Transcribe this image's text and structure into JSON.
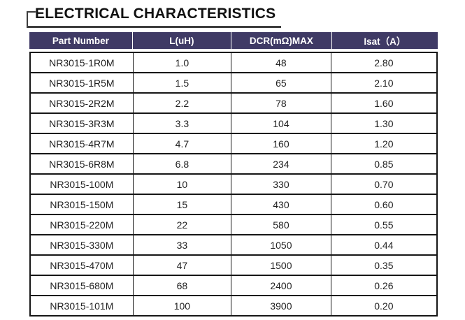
{
  "page": {
    "section_title": "ELECTRICAL CHARACTERISTICS"
  },
  "colors": {
    "header_bg": "#3f3a65",
    "header_text": "#ffffff",
    "table_border": "#161616",
    "title_decoration": "#3d3d3d",
    "body_text": "#222222",
    "page_bg": "#ffffff"
  },
  "table": {
    "headers": [
      "Part Number",
      "L(uH)",
      "DCR(mΩ)MAX",
      "Isat（A）"
    ],
    "rows": [
      [
        "NR3015-1R0M",
        "1.0",
        "48",
        "2.80"
      ],
      [
        "NR3015-1R5M",
        "1.5",
        "65",
        "2.10"
      ],
      [
        "NR3015-2R2M",
        "2.2",
        "78",
        "1.60"
      ],
      [
        "NR3015-3R3M",
        "3.3",
        "104",
        "1.30"
      ],
      [
        "NR3015-4R7M",
        "4.7",
        "160",
        "1.20"
      ],
      [
        "NR3015-6R8M",
        "6.8",
        "234",
        "0.85"
      ],
      [
        "NR3015-100M",
        "10",
        "330",
        "0.70"
      ],
      [
        "NR3015-150M",
        "15",
        "430",
        "0.60"
      ],
      [
        "NR3015-220M",
        "22",
        "580",
        "0.55"
      ],
      [
        "NR3015-330M",
        "33",
        "1050",
        "0.44"
      ],
      [
        "NR3015-470M",
        "47",
        "1500",
        "0.35"
      ],
      [
        "NR3015-680M",
        "68",
        "2400",
        "0.26"
      ],
      [
        "NR3015-101M",
        "100",
        "3900",
        "0.20"
      ]
    ]
  }
}
